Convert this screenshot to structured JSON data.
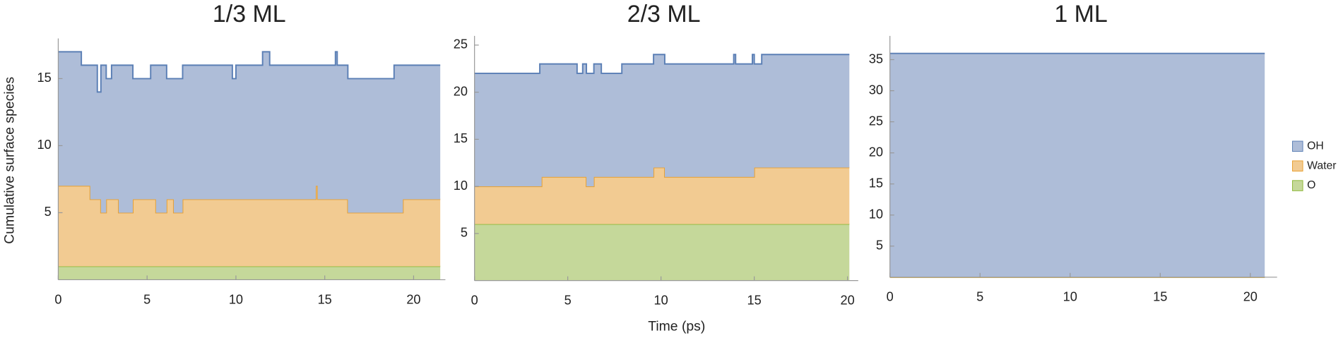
{
  "chart_data": [
    {
      "type": "area",
      "title": "1/3 ML",
      "ylabel": "Cumulative surface species",
      "step": true,
      "x": [
        0,
        1.3,
        1.8,
        2.2,
        2.4,
        2.7,
        3.0,
        3.4,
        4.2,
        5.2,
        5.5,
        6.1,
        6.5,
        7.0,
        9.8,
        10.0,
        11.5,
        11.9,
        14.5,
        14.6,
        15.6,
        15.7,
        16.3,
        18.9,
        19.4,
        21.5
      ],
      "series": [
        {
          "name": "O",
          "color": "#c5d89a",
          "line_color": "#8db838",
          "values": [
            1,
            1,
            1,
            1,
            1,
            1,
            1,
            1,
            1,
            1,
            1,
            1,
            1,
            1,
            1,
            1,
            1,
            1,
            1,
            1,
            1,
            1,
            1,
            1,
            1,
            1
          ]
        },
        {
          "name": "Water",
          "color": "#f2cb92",
          "line_color": "#e8a030",
          "values": [
            6,
            6,
            5,
            5,
            4,
            5,
            5,
            4,
            5,
            5,
            4,
            5,
            4,
            5,
            5,
            5,
            5,
            5,
            6,
            5,
            5,
            5,
            4,
            4,
            5,
            5
          ]
        },
        {
          "name": "OH",
          "color": "#aebdd8",
          "line_color": "#5b7fb5",
          "values": [
            10,
            9,
            10,
            8,
            11,
            9,
            10,
            11,
            9,
            10,
            11,
            9,
            10,
            10,
            9,
            10,
            11,
            10,
            9,
            10,
            11,
            10,
            10,
            11,
            10,
            10
          ]
        }
      ],
      "xlim": [
        0,
        21.5
      ],
      "ylim": [
        0,
        17.8
      ],
      "xticks": [
        0,
        5,
        10,
        15,
        20
      ],
      "yticks": [
        5,
        10,
        15
      ]
    },
    {
      "type": "area",
      "title": "2/3 ML",
      "xlabel": "Time (ps)",
      "step": true,
      "x": [
        0,
        3.5,
        3.6,
        5.5,
        5.8,
        6.0,
        6.4,
        6.8,
        7.9,
        9.6,
        10.2,
        13.9,
        14.0,
        14.9,
        15.0,
        15.4,
        20.1
      ],
      "series": [
        {
          "name": "O",
          "color": "#c5d89a",
          "line_color": "#8db838",
          "values": [
            6,
            6,
            6,
            6,
            6,
            6,
            6,
            6,
            6,
            6,
            6,
            6,
            6,
            6,
            6,
            6,
            6
          ]
        },
        {
          "name": "Water",
          "color": "#f2cb92",
          "line_color": "#e8a030",
          "values": [
            4,
            4,
            5,
            5,
            5,
            4,
            5,
            5,
            5,
            6,
            5,
            5,
            5,
            5,
            6,
            6,
            6
          ]
        },
        {
          "name": "OH",
          "color": "#aebdd8",
          "line_color": "#5b7fb5",
          "values": [
            12,
            13,
            12,
            11,
            12,
            12,
            12,
            11,
            12,
            12,
            12,
            13,
            12,
            13,
            11,
            12,
            12
          ]
        }
      ],
      "xlim": [
        0,
        20.3
      ],
      "ylim": [
        0,
        25.7
      ],
      "xticks": [
        0,
        5,
        10,
        15,
        20
      ],
      "yticks": [
        5,
        10,
        15,
        20,
        25
      ]
    },
    {
      "type": "area",
      "title": "1 ML",
      "step": true,
      "legend": "right",
      "x": [
        0,
        20.8
      ],
      "series": [
        {
          "name": "O",
          "color": "#c5d89a",
          "line_color": "#8db838",
          "values": [
            0,
            0
          ]
        },
        {
          "name": "Water",
          "color": "#f2cb92",
          "line_color": "#e8a030",
          "values": [
            0,
            0
          ]
        },
        {
          "name": "OH",
          "color": "#aebdd8",
          "line_color": "#5b7fb5",
          "values": [
            36,
            36
          ]
        }
      ],
      "xlim": [
        0,
        21.2
      ],
      "ylim": [
        0,
        38.4
      ],
      "xticks": [
        0,
        5,
        10,
        15,
        20
      ],
      "yticks": [
        5,
        10,
        15,
        20,
        25,
        30,
        35
      ]
    }
  ]
}
